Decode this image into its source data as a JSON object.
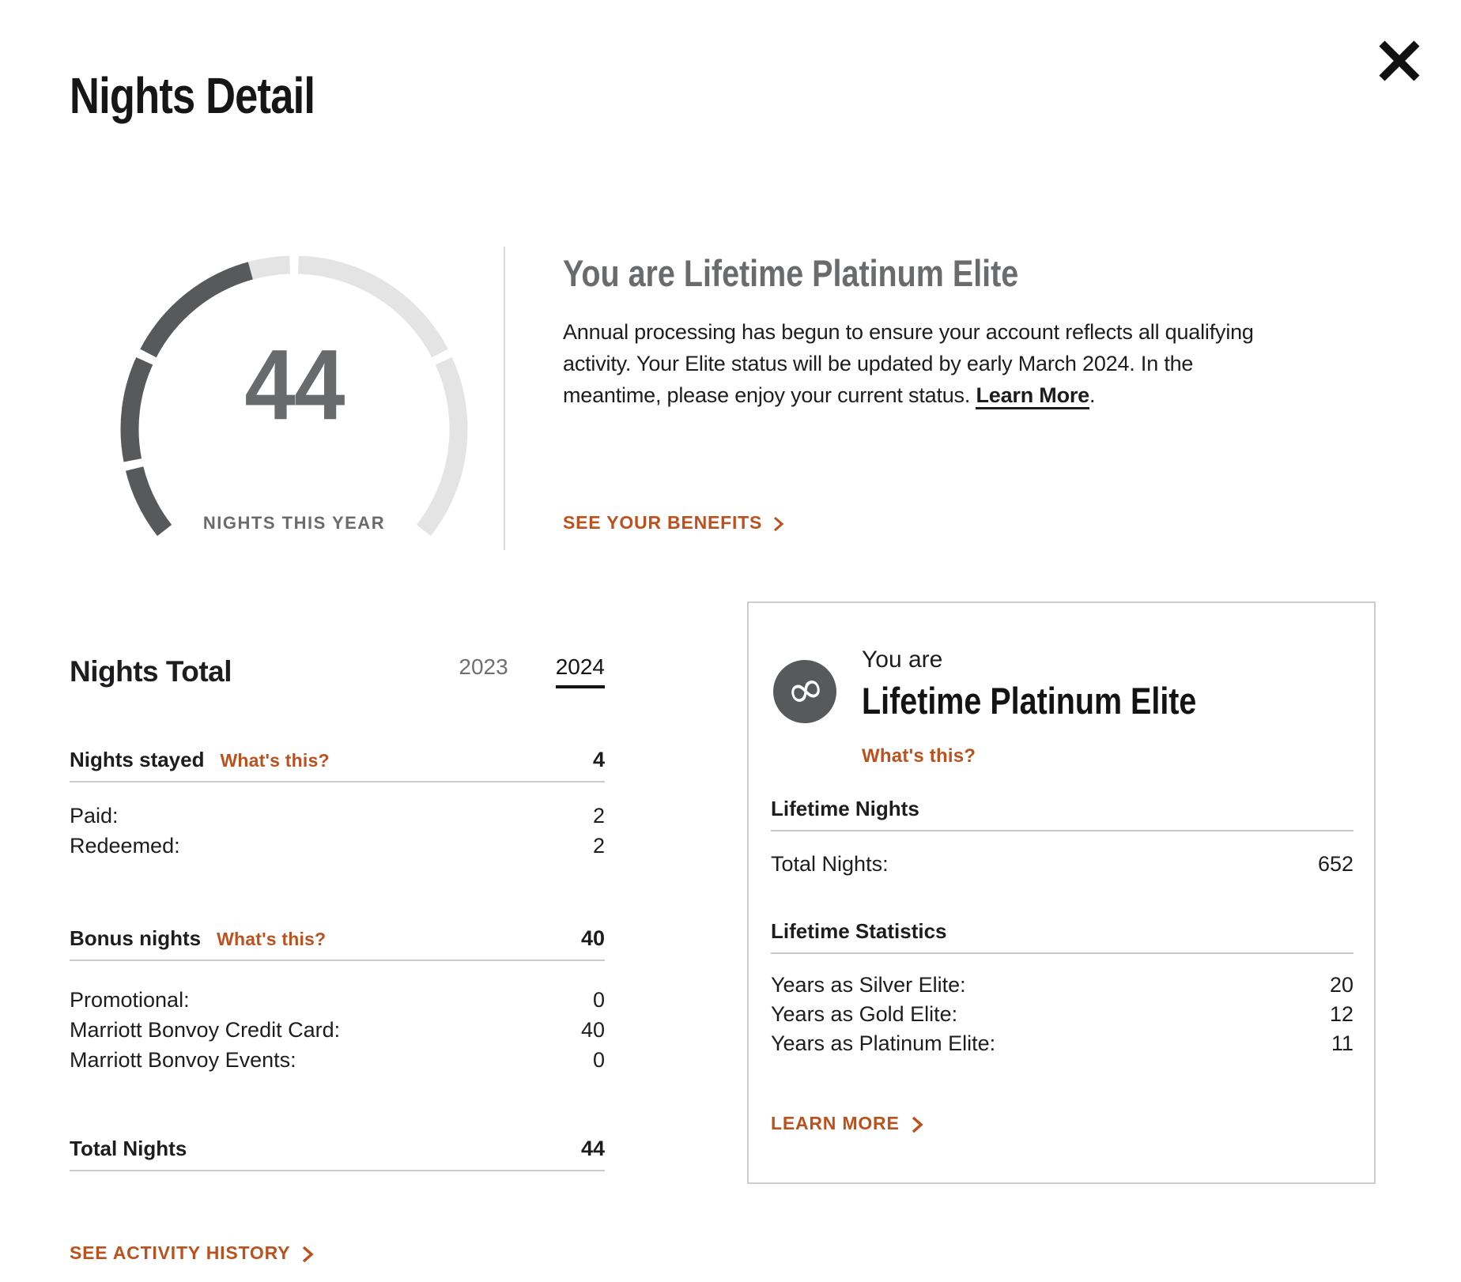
{
  "page": {
    "title": "Nights Detail"
  },
  "colors": {
    "accent_orange": "#bc511d",
    "gauge_filled": "#58595b",
    "gauge_empty": "#e4e4e5",
    "muted_gray": "#6a6b6d",
    "text_dark": "#1d1d1f"
  },
  "gauge": {
    "value": 44,
    "max": 100,
    "thresholds": [
      10,
      25,
      50,
      75
    ],
    "start_angle": -128,
    "end_angle": 128,
    "gap_degrees": 3,
    "value_display": "44",
    "label": "NIGHTS THIS YEAR",
    "filled_color": "#58595b",
    "empty_color": "#e4e4e5"
  },
  "status_banner": {
    "heading": "You are Lifetime Platinum Elite",
    "body": "Annual processing has begun to ensure your account reflects all qualifying activity. Your Elite status will be updated by early March 2024. In the meantime, please enjoy your current status. ",
    "inline_link": "Learn More",
    "period": ".",
    "benefits_link": "SEE YOUR BENEFITS"
  },
  "nights_total": {
    "heading": "Nights Total",
    "tabs": [
      {
        "label": "2023",
        "active": false
      },
      {
        "label": "2024",
        "active": true
      }
    ],
    "sections": [
      {
        "label": "Nights stayed",
        "help": "What's this?",
        "value": "4",
        "rows": [
          {
            "label": "Paid:",
            "value": "2"
          },
          {
            "label": "Redeemed:",
            "value": "2"
          }
        ]
      },
      {
        "label": "Bonus nights",
        "help": "What's this?",
        "value": "40",
        "rows": [
          {
            "label": "Promotional:",
            "value": "0"
          },
          {
            "label": "Marriott Bonvoy Credit Card:",
            "value": "40"
          },
          {
            "label": "Marriott Bonvoy Events:",
            "value": "0"
          }
        ]
      }
    ],
    "total": {
      "label": "Total Nights",
      "value": "44"
    },
    "activity_link": "SEE ACTIVITY HISTORY"
  },
  "lifetime_card": {
    "intro": "You are",
    "title": "Lifetime Platinum Elite",
    "help": "What's this?",
    "infinity_glyph": "∞",
    "nights_section": {
      "heading": "Lifetime Nights",
      "rows": [
        {
          "label": "Total Nights:",
          "value": "652"
        }
      ]
    },
    "stats_section": {
      "heading": "Lifetime Statistics",
      "rows": [
        {
          "label": "Years as Silver Elite:",
          "value": "20"
        },
        {
          "label": "Years as Gold Elite:",
          "value": "12"
        },
        {
          "label": "Years as Platinum Elite:",
          "value": "11"
        }
      ]
    },
    "learn_more": "LEARN MORE"
  }
}
